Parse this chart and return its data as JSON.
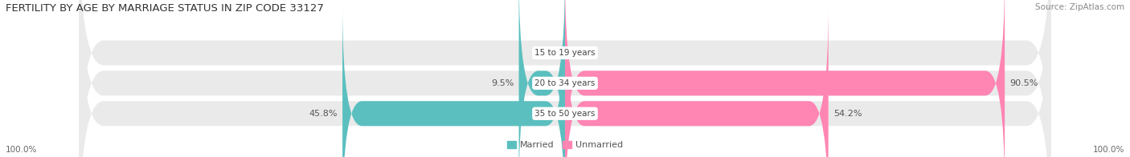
{
  "title": "FERTILITY BY AGE BY MARRIAGE STATUS IN ZIP CODE 33127",
  "source": "Source: ZipAtlas.com",
  "categories": [
    "15 to 19 years",
    "20 to 34 years",
    "35 to 50 years"
  ],
  "married": [
    0.0,
    9.5,
    45.8
  ],
  "unmarried": [
    0.0,
    90.5,
    54.2
  ],
  "married_color": "#5BBFBF",
  "unmarried_color": "#FF85B3",
  "bar_bg_color": "#EAEAEA",
  "title_fontsize": 9.5,
  "source_fontsize": 7.5,
  "label_fontsize": 8,
  "category_fontsize": 7.5,
  "legend_fontsize": 8,
  "axis_label_fontsize": 7.5,
  "background_color": "#FFFFFF"
}
